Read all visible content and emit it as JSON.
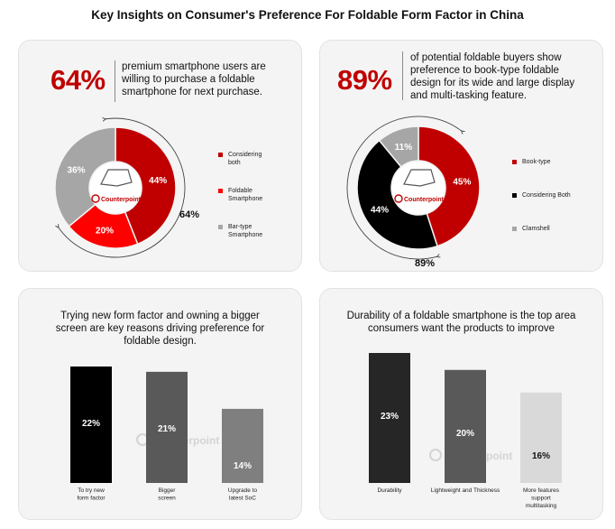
{
  "title": "Key Insights on Consumer's Preference For Foldable Form Factor in China",
  "panel1": {
    "big_stat": "64%",
    "text_lines": [
      "premium smartphone users are",
      "willing to purchase a foldable",
      "smartphone for next purchase."
    ],
    "arc_label": "64%",
    "logo_text": "Counterpoint"
  },
  "panel2": {
    "big_stat": "89%",
    "text_lines": [
      "of potential foldable buyers show",
      "preference to book-type foldable",
      "design for its wide and large display",
      "and multi-tasking feature."
    ],
    "arc_label": "89%",
    "logo_text": "Counterpoint"
  },
  "panel3": {
    "title_lines": [
      "Trying new form factor and owning a bigger",
      "screen are key reasons driving preference for",
      "foldable design."
    ],
    "watermark": "Counterpoint"
  },
  "panel4": {
    "title_lines": [
      "Durability of a foldable smartphone is the top area",
      "consumers want the products to improve"
    ],
    "watermark": "Counterpoint"
  },
  "chart_data": [
    {
      "type": "pie",
      "series": [
        {
          "values": [
            44,
            20,
            36
          ],
          "labels": [
            "44%",
            "20%",
            "36%"
          ],
          "legend": [
            [
              "Considering",
              "both"
            ],
            [
              "Foldable",
              "Smartphone"
            ],
            [
              "Bar-type",
              "Smartphone"
            ]
          ],
          "colors": [
            "#c00000",
            "#ff0000",
            "#a6a6a6"
          ]
        }
      ]
    },
    {
      "type": "pie",
      "series": [
        {
          "values": [
            45,
            44,
            11
          ],
          "labels": [
            "45%",
            "44%",
            "11%"
          ],
          "legend": [
            [
              "Book-type"
            ],
            [
              "Considering Both"
            ],
            [
              "Clamshell"
            ]
          ],
          "colors": [
            "#c00000",
            "#000000",
            "#a6a6a6"
          ]
        }
      ]
    },
    {
      "type": "bar",
      "categories": [
        [
          "To try new",
          "form factor"
        ],
        [
          "Bigger",
          "screen"
        ],
        [
          "Upgrade to",
          "latest SoC"
        ]
      ],
      "values": [
        22,
        21,
        14
      ],
      "labels": [
        "22%",
        "21%",
        "14%"
      ],
      "colors": [
        "#000000",
        "#595959",
        "#7f7f7f"
      ],
      "ylim": [
        0,
        22
      ]
    },
    {
      "type": "bar",
      "categories": [
        [
          "Durability"
        ],
        [
          "Lightweight and Thickness"
        ],
        [
          "More features",
          "support",
          "multitasking"
        ]
      ],
      "values": [
        23,
        20,
        16
      ],
      "labels": [
        "23%",
        "20%",
        "16%"
      ],
      "colors": [
        "#262626",
        "#595959",
        "#d9d9d9"
      ],
      "ylim": [
        0,
        23
      ]
    }
  ]
}
